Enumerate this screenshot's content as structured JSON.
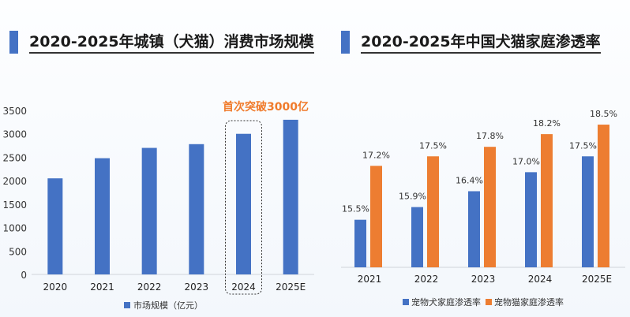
{
  "chart_data": [
    {
      "type": "bar",
      "title": "2020-2025年城镇（犬猫）消费市场规模",
      "categories": [
        "2020",
        "2021",
        "2022",
        "2023",
        "2024",
        "2025E"
      ],
      "series": [
        {
          "name": "市场规模（亿元）",
          "values": [
            2050,
            2480,
            2700,
            2780,
            3000,
            3300
          ],
          "color": "#4472c4"
        }
      ],
      "ylim": [
        0,
        3500
      ],
      "yticks": [
        0,
        500,
        1000,
        1500,
        2000,
        2500,
        3000,
        3500
      ],
      "grid": false,
      "legend": "bottom",
      "annotation": {
        "text": "首次突破3000亿",
        "category": "2024",
        "color": "#f07a2a"
      }
    },
    {
      "type": "bar",
      "title": "2020-2025年中国犬猫家庭渗透率",
      "categories": [
        "2021",
        "2022",
        "2023",
        "2024",
        "2025E"
      ],
      "series": [
        {
          "name": "宠物犬家庭渗透率",
          "values": [
            15.5,
            15.9,
            16.4,
            17.0,
            17.5
          ],
          "labels": [
            "15.5%",
            "15.9%",
            "16.4%",
            "17.0%",
            "17.5%"
          ],
          "color": "#4472c4"
        },
        {
          "name": "宠物猫家庭渗透率",
          "values": [
            17.2,
            17.5,
            17.8,
            18.2,
            18.5
          ],
          "labels": [
            "17.2%",
            "17.5%",
            "17.8%",
            "18.2%",
            "18.5%"
          ],
          "color": "#ed7d31"
        }
      ],
      "ylim": [
        14,
        18.7
      ],
      "grid": false,
      "legend": "bottom"
    }
  ]
}
